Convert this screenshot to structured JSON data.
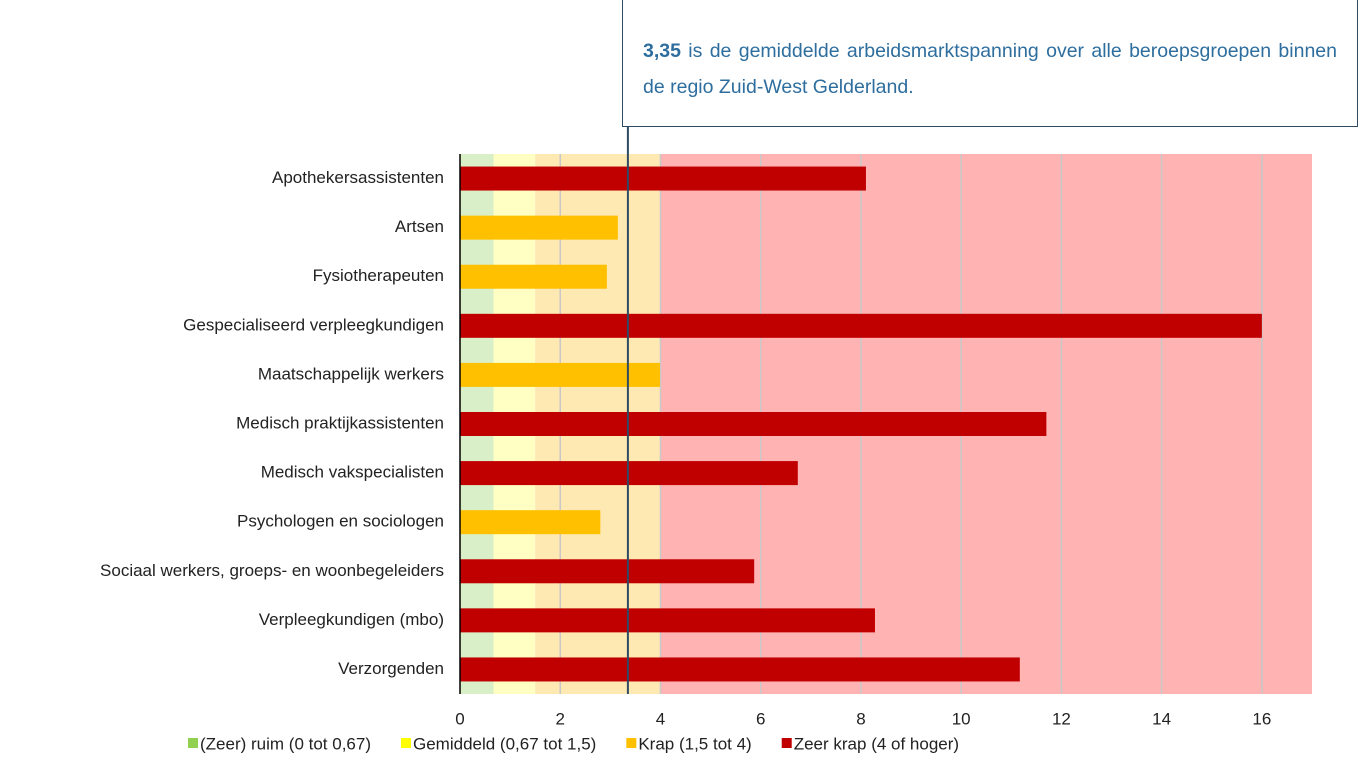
{
  "chart_data": {
    "type": "barh",
    "categories": [
      "Apothekersassistenten",
      "Artsen",
      "Fysiotherapeuten",
      "Gespecialiseerd verpleegkundigen",
      "Maatschappelijk werkers",
      "Medisch praktijkassistenten",
      "Medisch vakspecialisten",
      "Psychologen en sociologen",
      "Sociaal werkers, groeps- en woonbegeleiders",
      "Verpleegkundigen (mbo)",
      "Verzorgenden"
    ],
    "values": [
      8.1,
      3.15,
      2.93,
      16,
      3.99,
      11.7,
      6.74,
      2.8,
      5.87,
      8.28,
      11.17
    ],
    "colors": [
      "#c00000",
      "#ffc000",
      "#ffc000",
      "#c00000",
      "#ffc000",
      "#c00000",
      "#c00000",
      "#ffc000",
      "#c00000",
      "#c00000",
      "#c00000"
    ],
    "xlim": [
      0,
      17
    ],
    "xticks": [
      0,
      2,
      4,
      6,
      8,
      10,
      12,
      14,
      16
    ],
    "grid": true,
    "bands": [
      {
        "name": "(Zeer) ruim (0 tot 0,67)",
        "color": "#92d050",
        "band_color": "#d8efc8",
        "from": 0,
        "to": 0.67
      },
      {
        "name": "Gemiddeld (0,67 tot 1,5)",
        "color": "#ffff00",
        "band_color": "#ffffc4",
        "from": 0.67,
        "to": 1.5
      },
      {
        "name": "Krap (1,5 tot 4)",
        "color": "#ffc000",
        "band_color": "#ffe9b3",
        "from": 1.5,
        "to": 4
      },
      {
        "name": "Zeer krap (4 of hoger)",
        "color": "#c00000",
        "band_color": "#ffb3b3",
        "from": 4,
        "to": 17
      }
    ],
    "reference_line": {
      "value": 3.35,
      "label": "3,35"
    },
    "annotation": "is de gemiddelde arbeidsmarktspanning over alle beroepsgroepen binnen de regio Zuid-West Gelderland."
  }
}
